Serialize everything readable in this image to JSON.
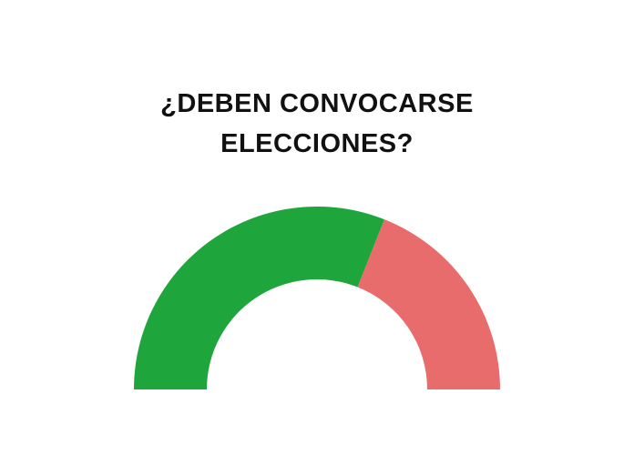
{
  "chart_data": {
    "type": "pie",
    "variant": "semi-donut",
    "title_lines": [
      "¿DEBEN CONVOCARSE",
      "ELECCIONES?"
    ],
    "categories": [
      "",
      ""
    ],
    "values": [
      62,
      38
    ],
    "colors": [
      "#1ea53c",
      "#e86c6c"
    ]
  }
}
